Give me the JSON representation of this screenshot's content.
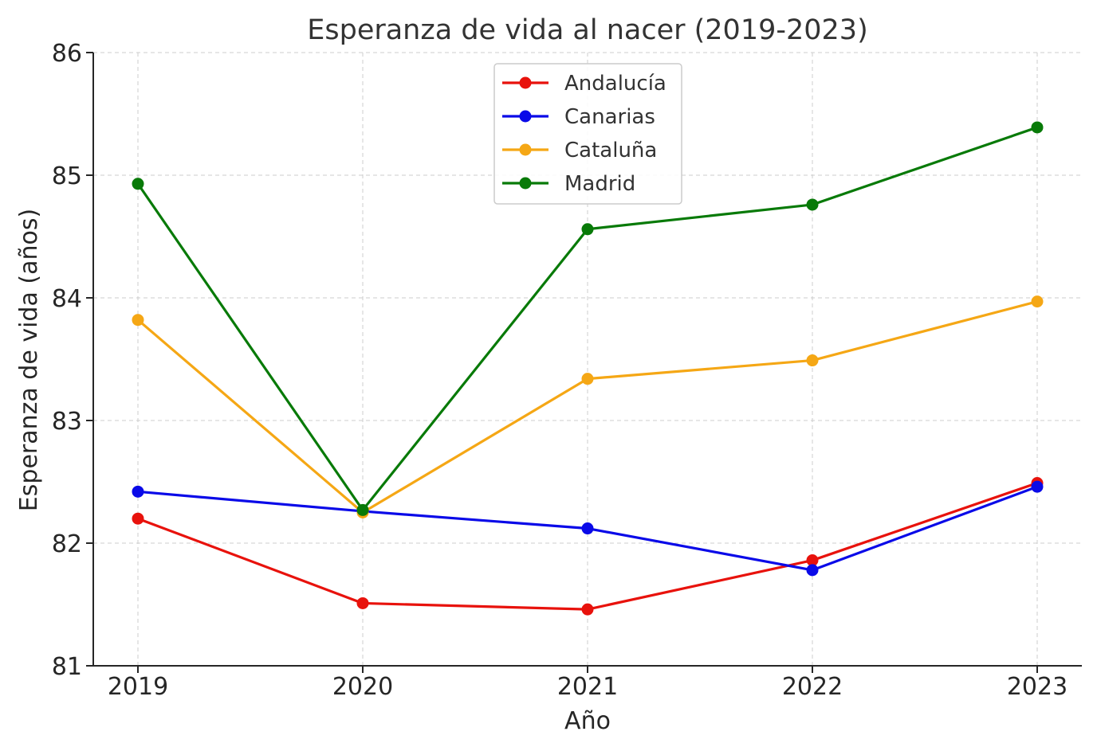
{
  "chart_data": {
    "type": "line",
    "title": "Esperanza de vida al nacer (2019-2023)",
    "xlabel": "Año",
    "ylabel": "Esperanza de vida (años)",
    "categories": [
      "2019",
      "2020",
      "2021",
      "2022",
      "2023"
    ],
    "ylim": [
      81,
      86
    ],
    "yticks": [
      "81",
      "82",
      "83",
      "84",
      "85",
      "86"
    ],
    "grid": true,
    "legend_position": "top-center",
    "series": [
      {
        "name": "Andalucía",
        "color": "#e8120c",
        "values": [
          82.2,
          81.51,
          81.46,
          81.86,
          82.49
        ]
      },
      {
        "name": "Canarias",
        "color": "#0a0ae8",
        "values": [
          82.42,
          82.26,
          82.12,
          81.78,
          82.46
        ]
      },
      {
        "name": "Cataluña",
        "color": "#f5a715",
        "values": [
          83.82,
          82.25,
          83.34,
          83.49,
          83.97
        ]
      },
      {
        "name": "Madrid",
        "color": "#087a08",
        "values": [
          84.93,
          82.27,
          84.56,
          84.76,
          85.39
        ]
      }
    ]
  }
}
